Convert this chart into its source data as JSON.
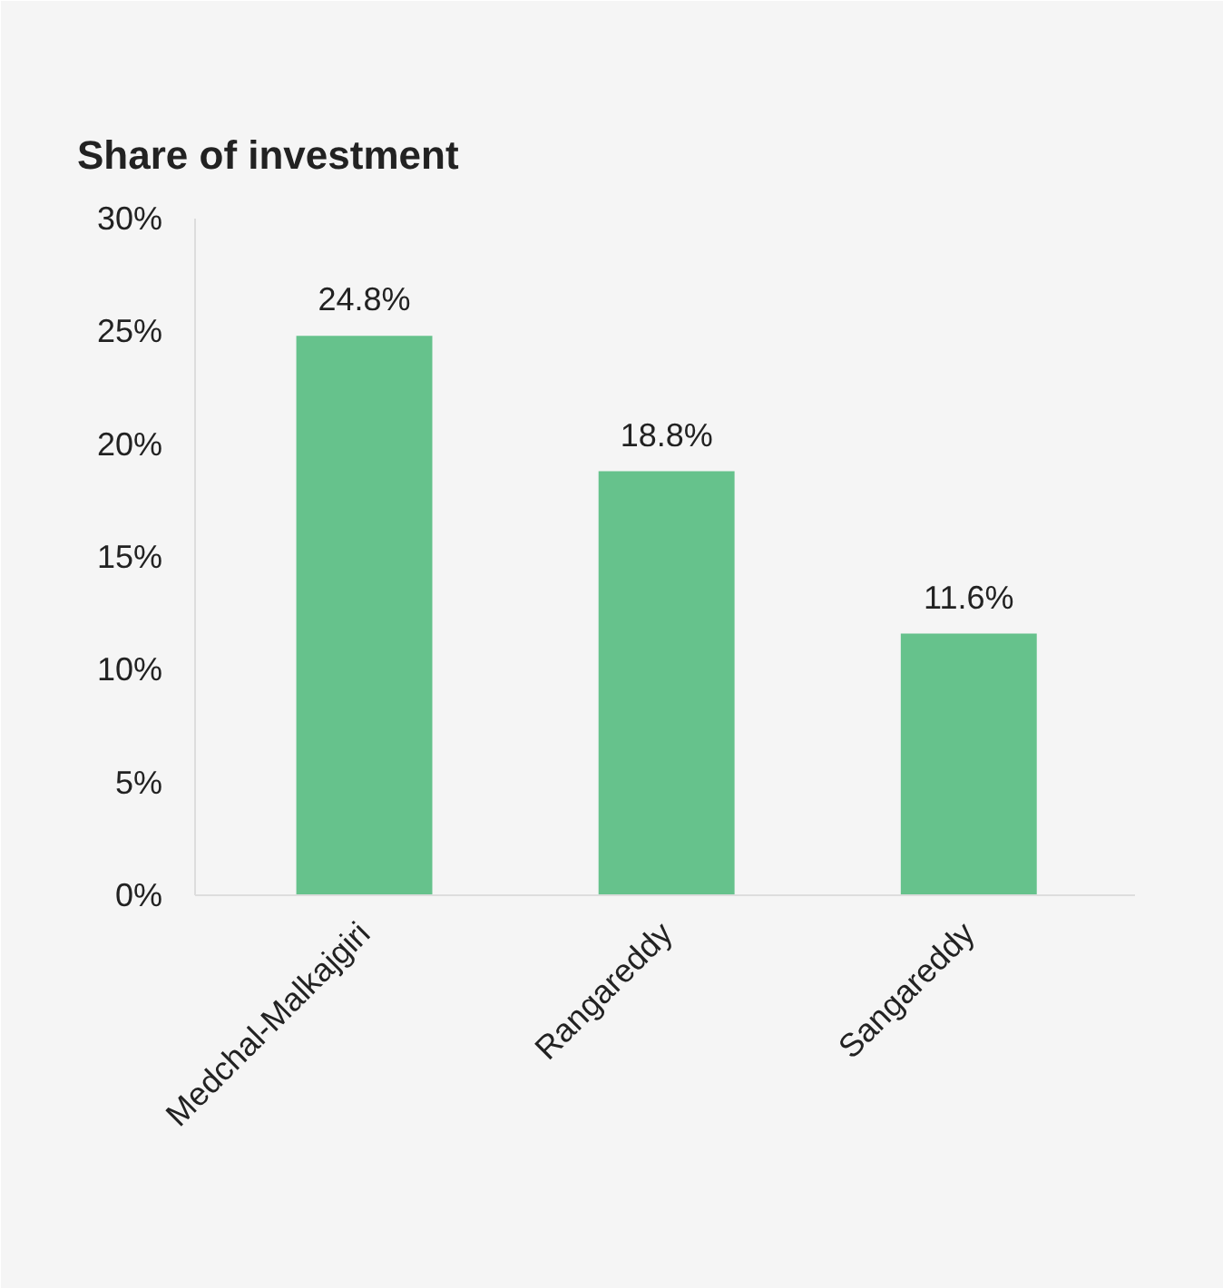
{
  "chart_data": {
    "type": "bar",
    "title": "Share of investment",
    "categories": [
      "Medchal-Malkajgiri",
      "Rangareddy",
      "Sangareddy"
    ],
    "values": [
      24.8,
      18.8,
      11.6
    ],
    "color": "#66c28c",
    "value_labels": [
      "24.8%",
      "18.8%",
      "11.6%"
    ],
    "ylim": [
      0,
      30
    ],
    "yticks": [
      {
        "value": 0,
        "label": "0%"
      },
      {
        "value": 5,
        "label": "5%"
      },
      {
        "value": 10,
        "label": "10%"
      },
      {
        "value": 15,
        "label": "15%"
      },
      {
        "value": 20,
        "label": "20%"
      },
      {
        "value": 25,
        "label": "25%"
      },
      {
        "value": 30,
        "label": "30%"
      }
    ],
    "grid": false
  }
}
